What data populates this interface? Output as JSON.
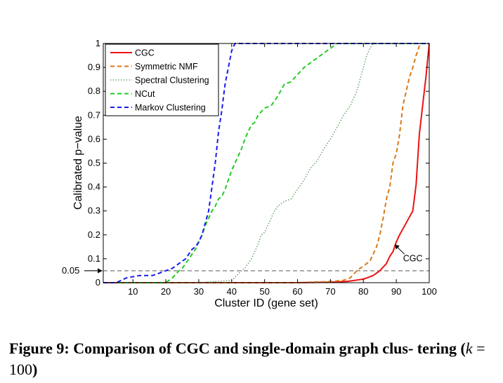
{
  "caption": {
    "text_before": "Figure 9: Comparison of CGC and single-domain graph clus- tering (",
    "math": "k = 100",
    "text_after": ")"
  },
  "chart_data": {
    "type": "line",
    "xlabel": "Cluster ID (gene set)",
    "ylabel": "Calibrated p−value",
    "xlim": [
      1,
      100
    ],
    "ylim": [
      0,
      1
    ],
    "x_ticks": [
      10,
      20,
      30,
      40,
      50,
      60,
      70,
      80,
      90,
      100
    ],
    "y_ticks": [
      0,
      0.1,
      0.2,
      0.3,
      0.4,
      0.5,
      0.6,
      0.7,
      0.8,
      0.9,
      1
    ],
    "y_tick_labels": [
      "0",
      "0.1",
      "0.2",
      "0.3",
      "0.4",
      "0.5",
      "0.6",
      "0.7",
      "0.8",
      "0.9",
      "1"
    ],
    "grid": false,
    "legend_position": "top-left",
    "threshold": {
      "y": 0.05,
      "label": "0.05",
      "color": "#555555"
    },
    "annotation": {
      "text": "CGC",
      "x": 89.5,
      "y": 0.16
    },
    "series": [
      {
        "name": "CGC",
        "color": "#ee1111",
        "style": "solid",
        "x": [
          1,
          20,
          40,
          60,
          70,
          75,
          80,
          83,
          85,
          87,
          88,
          89,
          90,
          91,
          93,
          95,
          96,
          97,
          98,
          99,
          100
        ],
        "y": [
          0,
          0,
          0,
          0,
          0.002,
          0.005,
          0.015,
          0.03,
          0.05,
          0.08,
          0.11,
          0.13,
          0.17,
          0.2,
          0.25,
          0.3,
          0.41,
          0.62,
          0.74,
          0.86,
          1.0
        ]
      },
      {
        "name": "Symmetric NMF",
        "color": "#d97a1a",
        "style": "dash",
        "x": [
          1,
          40,
          60,
          70,
          74,
          76,
          78,
          80,
          82,
          83,
          84,
          85,
          86,
          87,
          88,
          89,
          90,
          91,
          92,
          93,
          94,
          95,
          96,
          97,
          98
        ],
        "y": [
          0,
          0,
          0,
          0.005,
          0.01,
          0.02,
          0.05,
          0.07,
          0.09,
          0.12,
          0.15,
          0.2,
          0.27,
          0.35,
          0.4,
          0.5,
          0.54,
          0.62,
          0.74,
          0.8,
          0.86,
          0.9,
          0.95,
          0.99,
          1.0
        ]
      },
      {
        "name": "Spectral Clustering",
        "color": "#6aa26a",
        "style": "dot",
        "x": [
          1,
          30,
          40,
          43,
          44,
          45,
          46,
          47,
          48,
          49,
          50,
          51,
          52,
          53,
          54,
          55,
          56,
          58,
          60,
          62,
          64,
          66,
          68,
          70,
          72,
          74,
          76,
          78,
          79,
          80,
          81,
          82,
          83,
          100
        ],
        "y": [
          0,
          0,
          0.01,
          0.05,
          0.06,
          0.08,
          0.1,
          0.13,
          0.16,
          0.2,
          0.21,
          0.24,
          0.27,
          0.3,
          0.32,
          0.33,
          0.34,
          0.35,
          0.39,
          0.43,
          0.48,
          0.51,
          0.56,
          0.6,
          0.65,
          0.7,
          0.74,
          0.8,
          0.85,
          0.9,
          0.95,
          0.98,
          1.0,
          1.0
        ]
      },
      {
        "name": "NCut",
        "color": "#22cc22",
        "style": "dash",
        "x": [
          1,
          20,
          22,
          24,
          25,
          26,
          27,
          28,
          29,
          30,
          31,
          32,
          33,
          34,
          35,
          36,
          37,
          38,
          39,
          40,
          41,
          42,
          43,
          44,
          45,
          46,
          47,
          48,
          50,
          52,
          54,
          56,
          58,
          60,
          62,
          64,
          66,
          68,
          70,
          71,
          72,
          73,
          100
        ],
        "y": [
          0,
          0,
          0.02,
          0.05,
          0.06,
          0.08,
          0.1,
          0.12,
          0.14,
          0.17,
          0.2,
          0.24,
          0.27,
          0.3,
          0.32,
          0.35,
          0.36,
          0.39,
          0.43,
          0.47,
          0.5,
          0.53,
          0.56,
          0.6,
          0.63,
          0.66,
          0.67,
          0.7,
          0.73,
          0.74,
          0.78,
          0.83,
          0.84,
          0.87,
          0.9,
          0.92,
          0.94,
          0.96,
          0.98,
          0.99,
          1.0,
          1.0,
          1.0
        ]
      },
      {
        "name": "Markov Clustering",
        "color": "#1a1aee",
        "style": "dash",
        "x": [
          1,
          5,
          8,
          12,
          16,
          18,
          20,
          22,
          24,
          26,
          27,
          28,
          29,
          30,
          31,
          32,
          33,
          34,
          35,
          36,
          37,
          38,
          39,
          40,
          41,
          42,
          100
        ],
        "y": [
          0,
          0,
          0.02,
          0.03,
          0.03,
          0.04,
          0.05,
          0.06,
          0.08,
          0.1,
          0.12,
          0.14,
          0.15,
          0.17,
          0.2,
          0.25,
          0.3,
          0.4,
          0.5,
          0.63,
          0.72,
          0.83,
          0.9,
          0.97,
          1.0,
          1.0,
          1.0
        ]
      }
    ]
  }
}
